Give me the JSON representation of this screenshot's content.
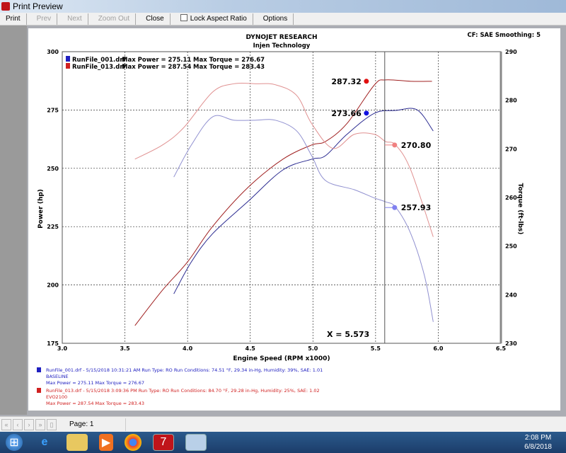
{
  "window": {
    "title": "Print Preview"
  },
  "toolbar": {
    "print": "Print",
    "prev": "Prev",
    "next": "Next",
    "zoom_out": "Zoom Out",
    "close": "Close",
    "lock_aspect": "Lock Aspect Ratio",
    "lock_checked": false,
    "options": "Options"
  },
  "report": {
    "company": "DYNOJET RESEARCH",
    "subtitle": "Injen Technology",
    "cf": "CF: SAE  Smoothing: 5",
    "legend": [
      {
        "file": "RunFile_001.drf",
        "power": "Max Power = 275.11",
        "torque": "Max Torque = 276.67",
        "color": "#2020c0"
      },
      {
        "file": "RunFile_013.drf",
        "power": "Max Power = 287.54",
        "torque": "Max Torque = 283.43",
        "color": "#d02020"
      }
    ],
    "runs": [
      {
        "line1": "RunFile_001.drf - 5/15/2018 10:31:21 AM  Run Type: RO  Run Conditions: 74.51 °F, 29.34 in-Hg,  Humidity:  39%, SAE: 1.01",
        "line2": "BASELINE",
        "line3": "Max Power = 275.11  Max Torque = 276.67",
        "color": "#2020c0"
      },
      {
        "line1": "RunFile_013.drf - 5/15/2018 3:09:36 PM  Run Type: RO  Run Conditions: 84.70 °F, 29.28 in-Hg,  Humidity:  25%, SAE: 1.02",
        "line2": "EVO2100",
        "line3": "Max Power = 287.54  Max Torque = 283.43",
        "color": "#d02020"
      }
    ]
  },
  "chart_data": {
    "type": "line",
    "xlabel": "Engine Speed (RPM x1000)",
    "ylabel": "Power (hp)",
    "y2label": "Torque (ft-lbs)",
    "xlim": [
      3.0,
      6.5
    ],
    "ylim": [
      175,
      300
    ],
    "y2lim": [
      230,
      290
    ],
    "xticks": [
      "3.0",
      "3.5",
      "4.0",
      "4.5",
      "5.0",
      "5.5",
      "6.0",
      "6.5"
    ],
    "yticks": [
      "175",
      "200",
      "225",
      "250",
      "275",
      "300"
    ],
    "y2ticks": [
      "230",
      "240",
      "250",
      "260",
      "270",
      "280",
      "290"
    ],
    "grid": true,
    "cursor": {
      "x": 5.573,
      "label": "X = 5.573"
    },
    "markers": [
      {
        "axis": "power",
        "x": 5.5,
        "y": 287.32,
        "label": "287.32",
        "color": "#e01010"
      },
      {
        "axis": "power",
        "x": 5.5,
        "y": 273.66,
        "label": "273.66",
        "color": "#1010e0"
      },
      {
        "axis": "torque",
        "x": 5.573,
        "y": 270.8,
        "label": "270.80",
        "color": "#f08080"
      },
      {
        "axis": "torque",
        "x": 5.573,
        "y": 257.93,
        "label": "257.93",
        "color": "#8080f0"
      }
    ],
    "series": [
      {
        "name": "RunFile_013.drf",
        "axis": "power",
        "color": "#a02020",
        "x": [
          3.58,
          3.8,
          4.0,
          4.2,
          4.48,
          4.76,
          4.99,
          5.1,
          5.27,
          5.49,
          5.58,
          5.78,
          5.95
        ],
        "y": [
          182.6,
          197.8,
          209.9,
          225.1,
          241.7,
          253.9,
          260,
          261.5,
          269.1,
          285.7,
          287.9,
          287.3,
          287.3
        ]
      },
      {
        "name": "RunFile_001.drf",
        "axis": "power",
        "color": "#2a2a90",
        "x": [
          3.89,
          4.03,
          4.2,
          4.48,
          4.76,
          4.99,
          5.1,
          5.27,
          5.49,
          5.66,
          5.83,
          5.96
        ],
        "y": [
          196.2,
          209.9,
          222,
          235.7,
          249.3,
          253.9,
          255.4,
          264.5,
          273.6,
          274.8,
          275.1,
          266
        ]
      },
      {
        "name": "RunFile_013.drf",
        "axis": "torque",
        "color": "#e09090",
        "x": [
          3.58,
          3.8,
          3.97,
          4.2,
          4.37,
          4.54,
          4.7,
          4.87,
          4.99,
          5.16,
          5.33,
          5.49,
          5.58,
          5.66,
          5.78,
          5.96
        ],
        "y": [
          267.9,
          270.8,
          274.4,
          281.7,
          283.4,
          283.4,
          283.2,
          281,
          275.2,
          270.1,
          273,
          273,
          271.5,
          270.8,
          265.7,
          251.9
        ]
      },
      {
        "name": "RunFile_001.drf",
        "axis": "torque",
        "color": "#9090d0",
        "x": [
          3.89,
          4.03,
          4.2,
          4.37,
          4.54,
          4.7,
          4.87,
          4.99,
          5.1,
          5.33,
          5.49,
          5.58,
          5.66,
          5.78,
          5.89,
          5.96
        ],
        "y": [
          264.2,
          270.8,
          276.6,
          275.9,
          275.9,
          275.9,
          273.7,
          268.6,
          263.5,
          261.6,
          259.9,
          259.1,
          258,
          252.6,
          243.9,
          234.4
        ]
      }
    ]
  },
  "statusbar": {
    "page": "Page: 1"
  },
  "taskbar": {
    "time": "2:08 PM",
    "date": "6/8/2018"
  }
}
